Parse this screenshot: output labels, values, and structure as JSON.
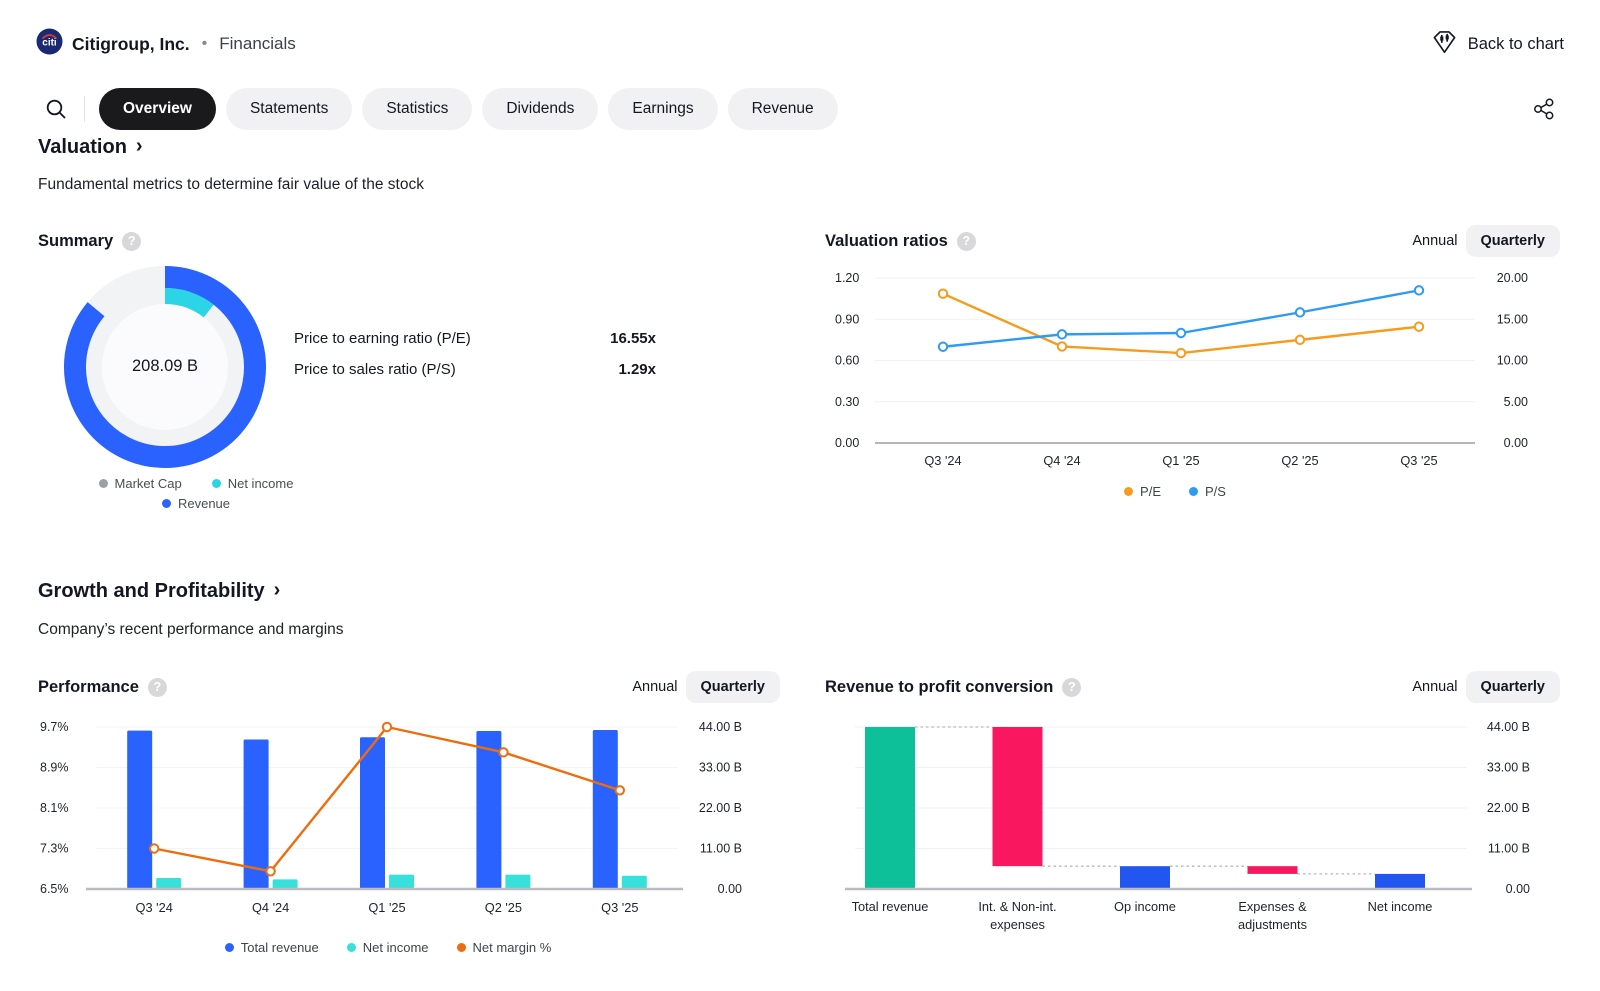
{
  "header": {
    "logo_text": "citi",
    "company": "Citigroup, Inc.",
    "bullet": "•",
    "page": "Financials",
    "back_to_chart": "Back to chart"
  },
  "icons": {
    "help": "?"
  },
  "toolbar": {
    "tabs": [
      {
        "label": "Overview",
        "active": true
      },
      {
        "label": "Statements",
        "active": false
      },
      {
        "label": "Statistics",
        "active": false
      },
      {
        "label": "Dividends",
        "active": false
      },
      {
        "label": "Earnings",
        "active": false
      },
      {
        "label": "Revenue",
        "active": false
      }
    ]
  },
  "sections": {
    "valuation": {
      "title": "Valuation",
      "chevron": "›",
      "subtitle": "Fundamental metrics to determine fair value of the stock"
    },
    "growth": {
      "title": "Growth and Profitability",
      "chevron": "›",
      "subtitle": "Company’s recent performance and margins"
    }
  },
  "summary": {
    "title": "Summary",
    "center_value": "208.09 B",
    "donut": {
      "disk_color": "#f2f3f5",
      "inner_color": "#fbfbfd",
      "segments": [
        {
          "name": "Revenue",
          "color": "#2962ff",
          "start_deg": 0,
          "sweep_deg": 310,
          "radius": 90,
          "width": 22
        },
        {
          "name": "Net income",
          "color": "#2bd5e6",
          "start_deg": 0,
          "sweep_deg": 38,
          "radius": 71,
          "width": 16
        }
      ]
    },
    "legend": [
      {
        "label": "Market Cap",
        "color": "#9aa0a6"
      },
      {
        "label": "Net income",
        "color": "#2bd5e6"
      },
      {
        "label": "Revenue",
        "color": "#2962ff"
      }
    ],
    "metrics": [
      {
        "label": "Price to earning ratio (P/E)",
        "value": "16.55x"
      },
      {
        "label": "Price to sales ratio (P/S)",
        "value": "1.29x"
      }
    ]
  },
  "valuation_ratios": {
    "title": "Valuation ratios",
    "period_annual": "Annual",
    "period_quarterly": "Quarterly",
    "chart_data": {
      "type": "line",
      "categories": [
        "Q3 '24",
        "Q4 '24",
        "Q1 '25",
        "Q2 '25",
        "Q3 '25"
      ],
      "left_axis": {
        "ticks": [
          "1.20",
          "0.90",
          "0.60",
          "0.30",
          "0.00"
        ],
        "min": 0,
        "max": 1.2
      },
      "right_axis": {
        "ticks": [
          "20.00",
          "15.00",
          "10.00",
          "5.00",
          "0.00"
        ],
        "min": 0,
        "max": 20
      },
      "series": [
        {
          "name": "P/E",
          "color": "#f89b1c",
          "axis": "right",
          "values": [
            18.1,
            11.7,
            10.9,
            12.5,
            14.1
          ]
        },
        {
          "name": "P/S",
          "color": "#2d9bf0",
          "axis": "left",
          "values": [
            0.7,
            0.79,
            0.8,
            0.95,
            1.11
          ]
        }
      ],
      "legend_position": "bottom-center",
      "grid": "horizontal-faint"
    }
  },
  "performance": {
    "title": "Performance",
    "period_annual": "Annual",
    "period_quarterly": "Quarterly",
    "chart_data": {
      "type": "bar+line",
      "categories": [
        "Q3 '24",
        "Q4 '24",
        "Q1 '25",
        "Q2 '25",
        "Q3 '25"
      ],
      "left_axis": {
        "ticks": [
          "9.7%",
          "8.9%",
          "8.1%",
          "7.3%",
          "6.5%"
        ],
        "min": 6.5,
        "max": 9.7
      },
      "right_axis": {
        "ticks": [
          "44.00 B",
          "33.00 B",
          "22.00 B",
          "11.00 B",
          "0.00"
        ],
        "min": 0,
        "max": 44
      },
      "bar_series": [
        {
          "name": "Total revenue",
          "color": "#2962ff",
          "axis": "right",
          "values": [
            43.0,
            40.6,
            41.2,
            42.9,
            43.2
          ]
        },
        {
          "name": "Net income",
          "color": "#38e0dc",
          "axis": "right",
          "values": [
            3.0,
            2.6,
            3.9,
            3.9,
            3.6
          ]
        }
      ],
      "line_series": {
        "name": "Net margin %",
        "color": "#ef6c0e",
        "axis": "left",
        "values": [
          7.3,
          6.85,
          9.7,
          9.2,
          8.45
        ]
      },
      "legend_position": "bottom-center",
      "grid": "horizontal-faint"
    }
  },
  "conversion": {
    "title": "Revenue to profit conversion",
    "period_annual": "Annual",
    "period_quarterly": "Quarterly",
    "chart_data": {
      "type": "waterfall",
      "categories": [
        [
          "Total revenue"
        ],
        [
          "Int. & Non-int.",
          "expenses"
        ],
        [
          "Op income"
        ],
        [
          "Expenses &",
          "adjustments"
        ],
        [
          "Net income"
        ]
      ],
      "right_axis": {
        "ticks": [
          "44.00 B",
          "33.00 B",
          "22.00 B",
          "11.00 B",
          "0.00"
        ],
        "min": 0,
        "max": 44
      },
      "bars": [
        {
          "label": "Total revenue",
          "from": 0,
          "to": 44.0,
          "color": "#0ec09a"
        },
        {
          "label": "Int. & Non-int. expenses",
          "from": 44.0,
          "to": 6.2,
          "color": "#f9185f"
        },
        {
          "label": "Op income",
          "from": 0,
          "to": 6.2,
          "color": "#2157f0"
        },
        {
          "label": "Expenses & adjustments",
          "from": 6.2,
          "to": 4.1,
          "color": "#f9185f"
        },
        {
          "label": "Net income",
          "from": 0,
          "to": 4.1,
          "color": "#2157f0"
        }
      ],
      "connectors": [
        {
          "level": 44.0,
          "from_bar": 0,
          "to_bar": 1
        },
        {
          "level": 6.2,
          "from_bar": 1,
          "to_bar": 2
        },
        {
          "level": 6.2,
          "from_bar": 2,
          "to_bar": 3
        },
        {
          "level": 4.1,
          "from_bar": 3,
          "to_bar": 4
        }
      ],
      "grid": "horizontal-faint"
    }
  }
}
